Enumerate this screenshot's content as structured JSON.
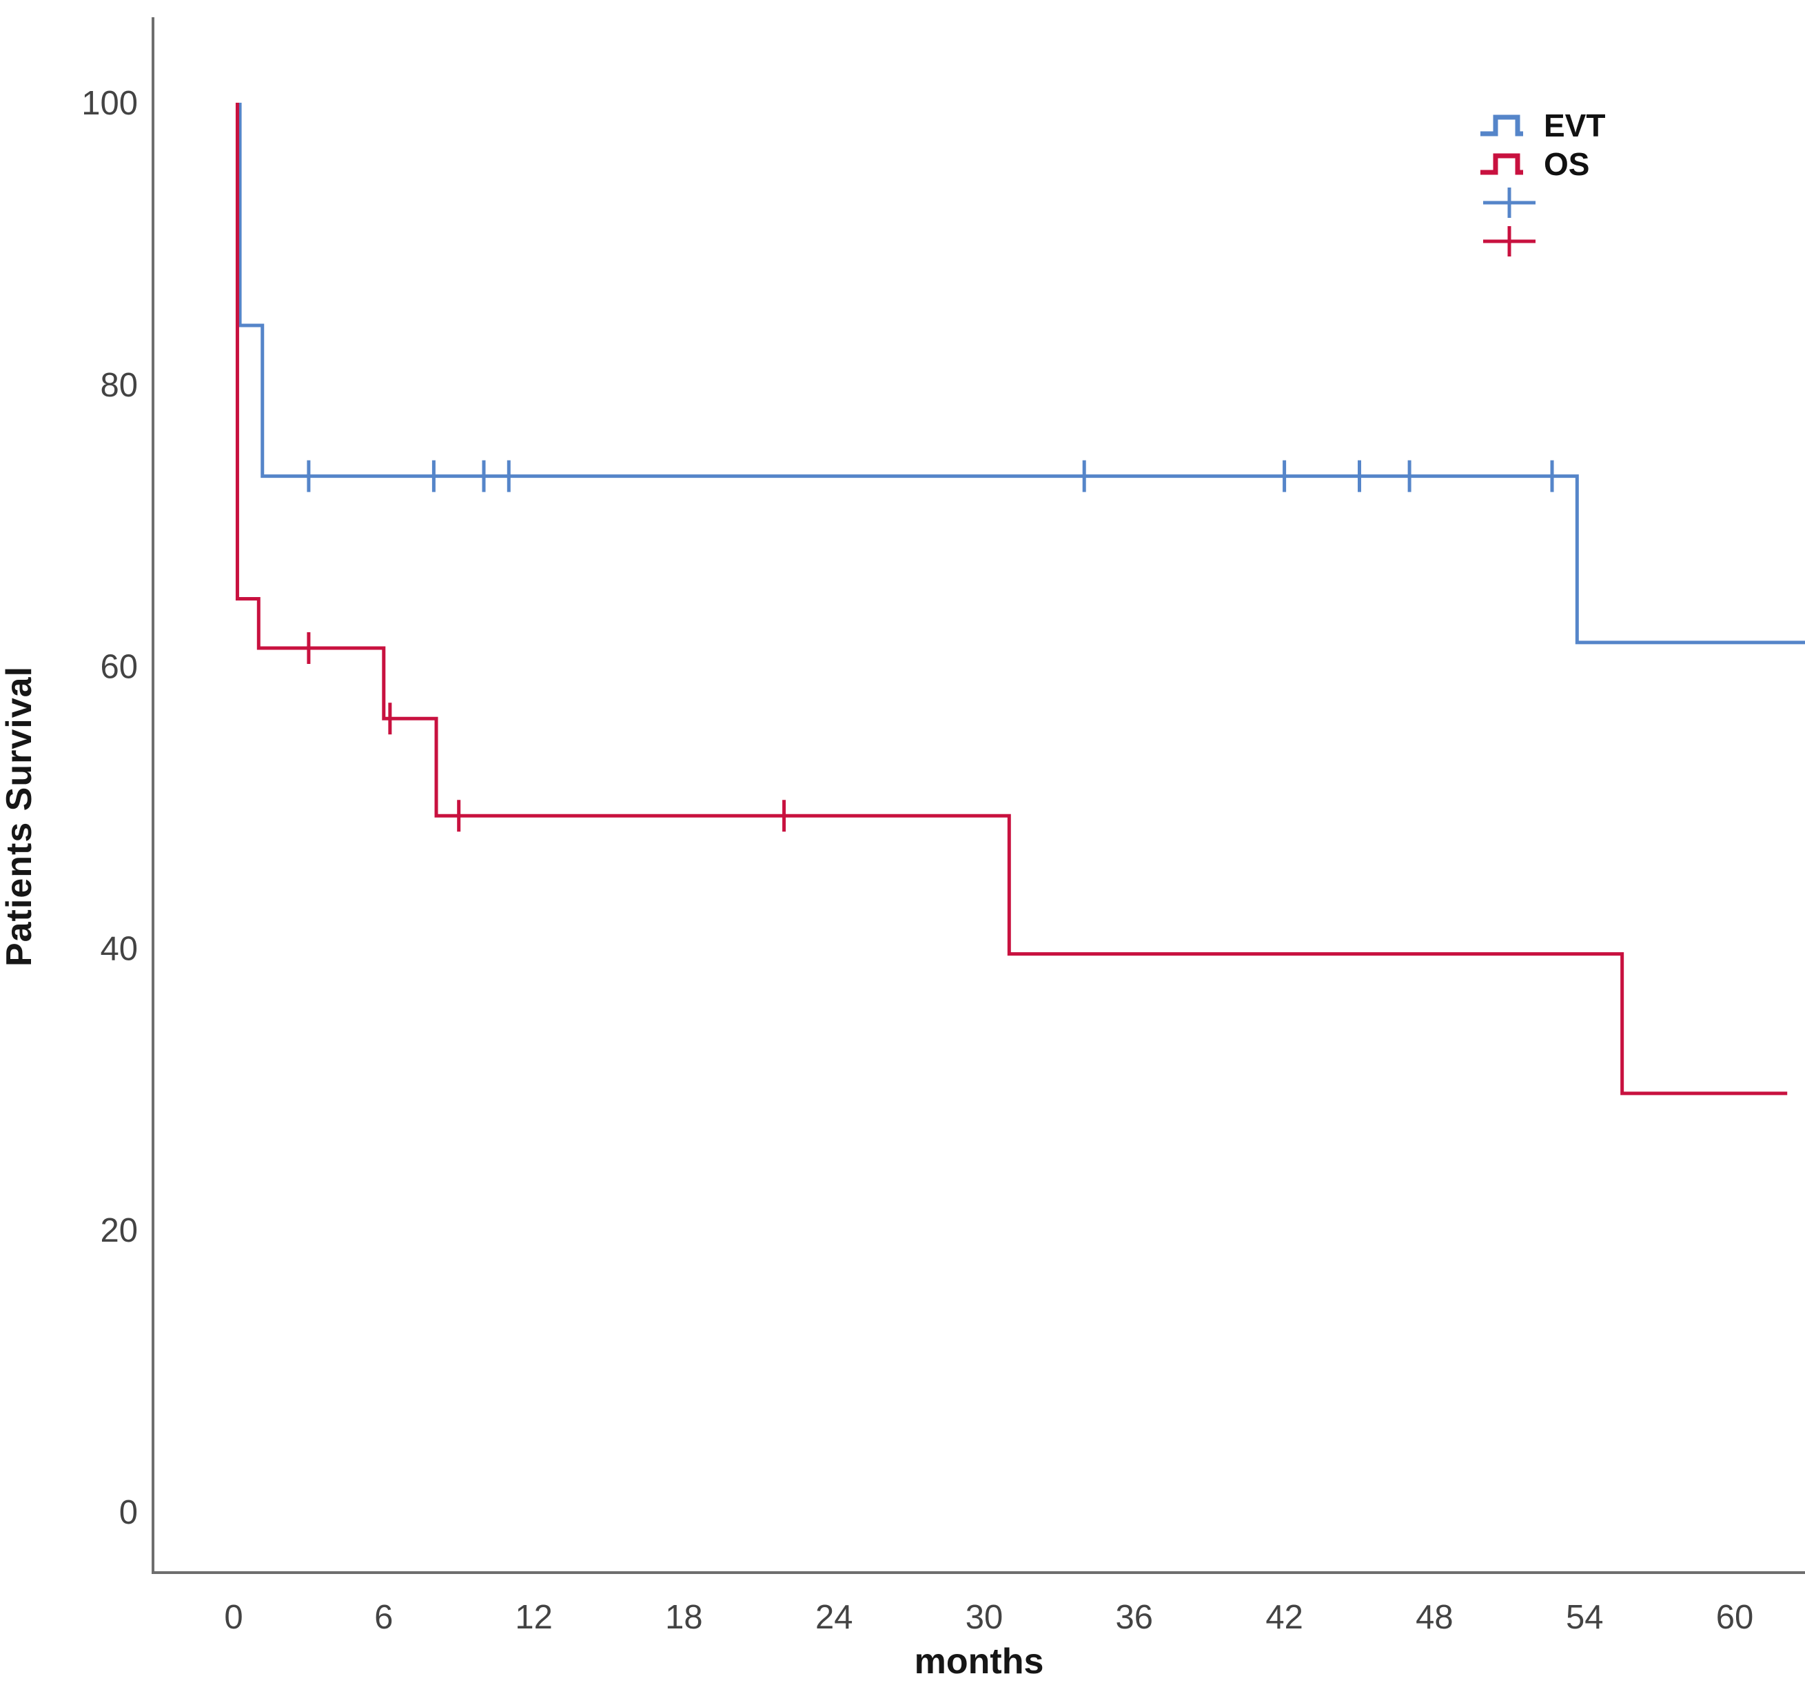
{
  "chart_data": {
    "type": "line",
    "subtype": "kaplan-meier-step",
    "title": "",
    "xlabel": "months",
    "ylabel": "Patients Survival",
    "x_ticks": [
      0,
      6,
      12,
      18,
      24,
      30,
      36,
      42,
      48,
      54,
      60
    ],
    "y_ticks": [
      0,
      20,
      40,
      60,
      80,
      100
    ],
    "xlim": [
      -3.2,
      63
    ],
    "ylim": [
      -4.3,
      106
    ],
    "grid": false,
    "legend_position": "top-right",
    "series": [
      {
        "name": "EVT",
        "color": "#5585C9",
        "points": [
          [
            0.25,
            100
          ],
          [
            0.25,
            84.2
          ],
          [
            1.15,
            84.2
          ],
          [
            1.15,
            73.5
          ],
          [
            53.7,
            73.5
          ],
          [
            53.7,
            61.7
          ],
          [
            62.9,
            61.7
          ]
        ],
        "censors": [
          [
            3,
            73.5
          ],
          [
            8,
            73.5
          ],
          [
            10,
            73.5
          ],
          [
            11,
            73.5
          ],
          [
            34,
            73.5
          ],
          [
            42,
            73.5
          ],
          [
            45,
            73.5
          ],
          [
            47,
            73.5
          ],
          [
            52.7,
            73.5
          ]
        ]
      },
      {
        "name": "OS",
        "color": "#C8113F",
        "points": [
          [
            0.15,
            100
          ],
          [
            0.15,
            64.8
          ],
          [
            1.0,
            64.8
          ],
          [
            1.0,
            61.3
          ],
          [
            6.0,
            61.3
          ],
          [
            6.0,
            56.3
          ],
          [
            8.1,
            56.3
          ],
          [
            8.1,
            49.4
          ],
          [
            31,
            49.4
          ],
          [
            31,
            39.6
          ],
          [
            55.5,
            39.6
          ],
          [
            55.5,
            29.7
          ],
          [
            62.1,
            29.7
          ]
        ],
        "censors": [
          [
            3,
            61.3
          ],
          [
            6.25,
            56.3
          ],
          [
            9,
            49.4
          ],
          [
            22,
            49.4
          ]
        ]
      }
    ]
  },
  "legend": {
    "items": [
      {
        "label": "EVT",
        "type": "step",
        "color": "#5585C9"
      },
      {
        "label": "OS",
        "type": "step",
        "color": "#C8113F"
      },
      {
        "label": "",
        "type": "censor",
        "color": "#5585C9"
      },
      {
        "label": "",
        "type": "censor",
        "color": "#C8113F"
      }
    ]
  },
  "axis_color": "#6e6e6e",
  "tick_label_color": "#434343"
}
